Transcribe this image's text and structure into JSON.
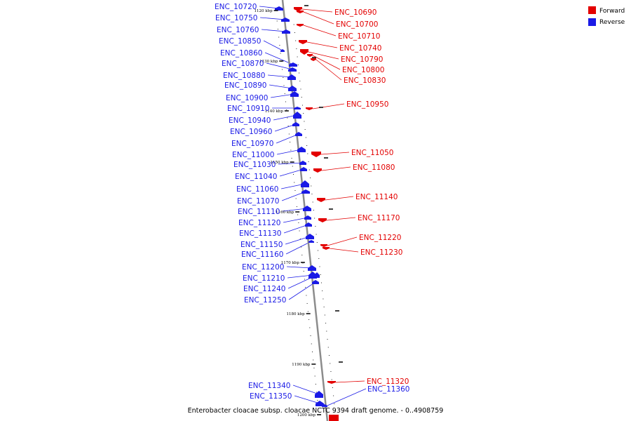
{
  "title": "Enterobacter cloacae subsp. cloacae NCTC 9394 draft genome. - 0..4908759",
  "colors": {
    "forward": "#e30000",
    "reverse": "#1a1ae6",
    "axis": "#8c8c8c",
    "tick": "#000000"
  },
  "legend": [
    {
      "label": "Forward",
      "color": "#e30000"
    },
    {
      "label": "Reverse",
      "color": "#1a1ae6"
    }
  ],
  "ticks": [
    "1120 kbp",
    "1130 kbp",
    "1140 kbp",
    "1150 kbp",
    "1160 kbp",
    "1170 kbp",
    "1180 kbp",
    "1190 kbp",
    "1200 kbp"
  ],
  "reverse_genes": [
    "ENC_10720",
    "ENC_10750",
    "ENC_10760",
    "ENC_10850",
    "ENC_10860",
    "ENC_10870",
    "ENC_10880",
    "ENC_10890",
    "ENC_10900",
    "ENC_10910",
    "ENC_10940",
    "ENC_10960",
    "ENC_10970",
    "ENC_11000",
    "ENC_11030",
    "ENC_11040",
    "ENC_11060",
    "ENC_11070",
    "ENC_11110",
    "ENC_11120",
    "ENC_11130",
    "ENC_11150",
    "ENC_11160",
    "ENC_11200",
    "ENC_11210",
    "ENC_11240",
    "ENC_11250",
    "ENC_11340",
    "ENC_11350",
    "ENC_11360"
  ],
  "forward_genes": [
    "ENC_10690",
    "ENC_10700",
    "ENC_10710",
    "ENC_10740",
    "ENC_10790",
    "ENC_10800",
    "ENC_10830",
    "ENC_10950",
    "ENC_11050",
    "ENC_11080",
    "ENC_11140",
    "ENC_11170",
    "ENC_11220",
    "ENC_11230",
    "ENC_11320"
  ]
}
